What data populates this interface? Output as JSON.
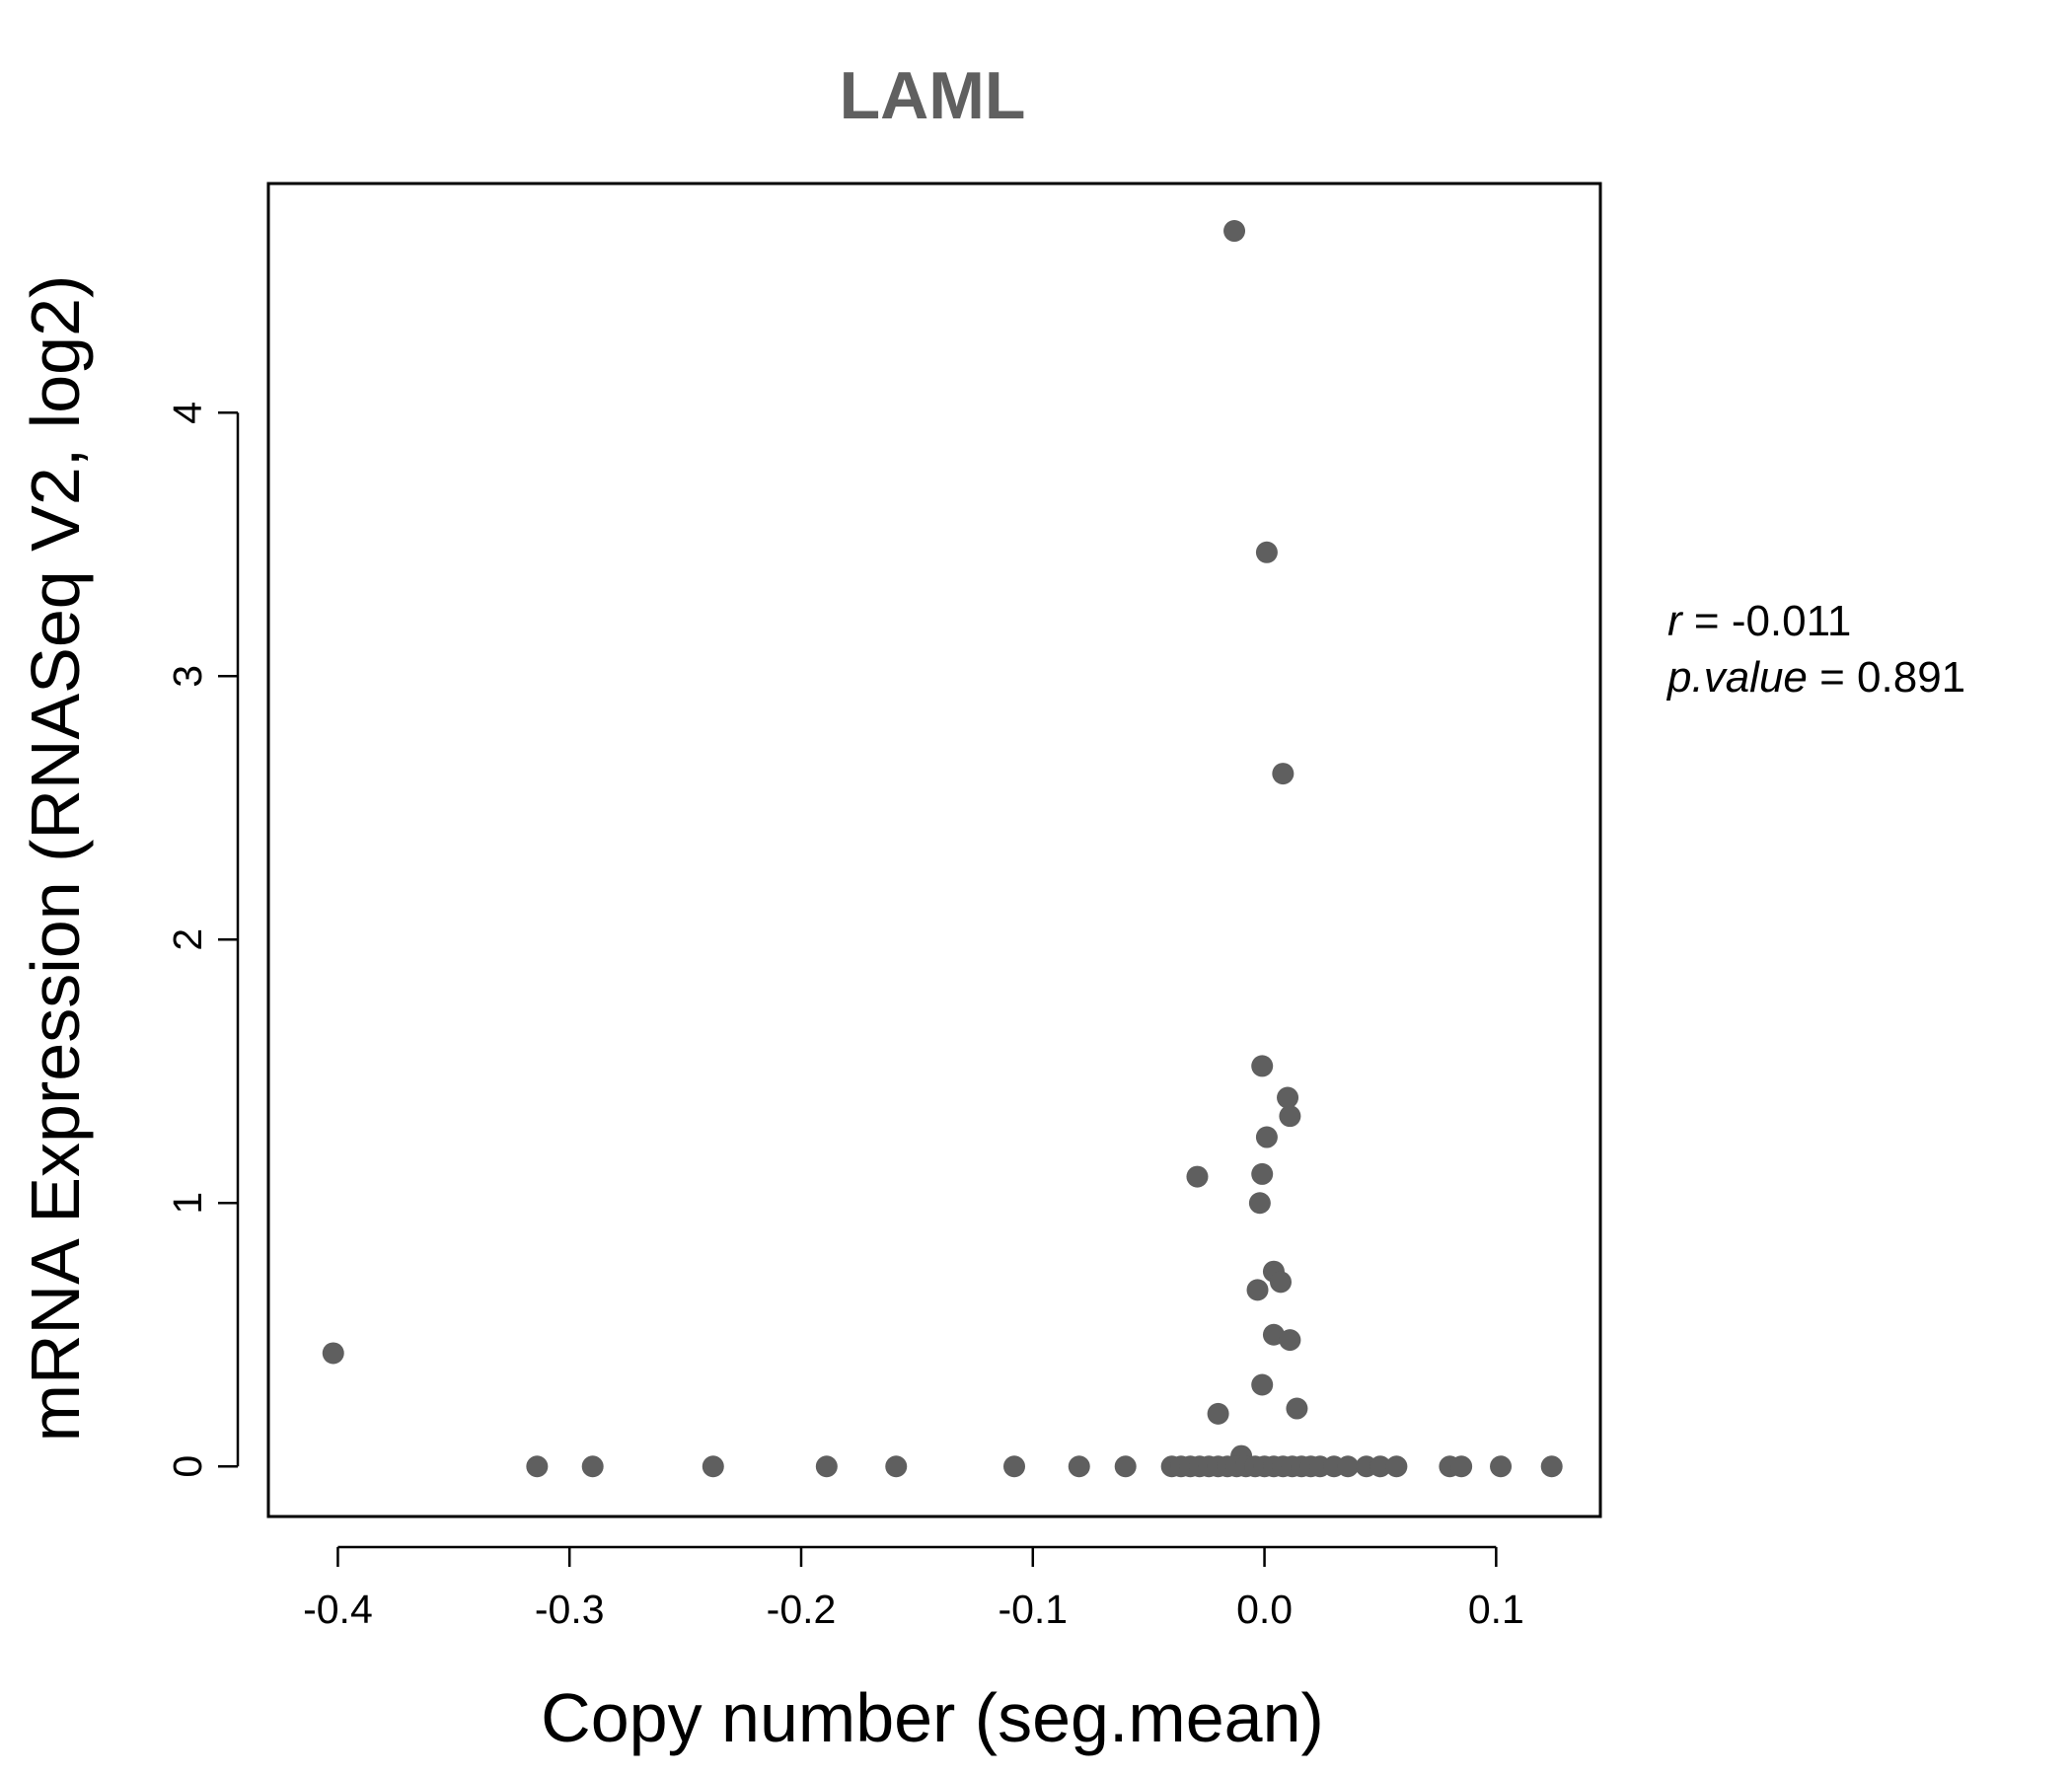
{
  "chart_data": {
    "type": "scatter",
    "title": "LAML",
    "xlabel": "Copy number (seg.mean)",
    "ylabel": "mRNA Expression (RNASeq V2, log2)",
    "xlim": [
      -0.43,
      0.145
    ],
    "ylim": [
      -0.19,
      4.87
    ],
    "xticks": [
      -0.4,
      -0.3,
      -0.2,
      -0.1,
      0.0,
      0.1
    ],
    "xtick_labels": [
      "-0.4",
      "-0.3",
      "-0.2",
      "-0.1",
      "0.0",
      "0.1"
    ],
    "yticks": [
      0,
      1,
      2,
      3,
      4
    ],
    "ytick_labels": [
      "0",
      "1",
      "2",
      "3",
      "4"
    ],
    "point_color": "#5f5f5f",
    "stats": {
      "r_label": "r",
      "r_value": "-0.011",
      "p_label": "p.value",
      "p_value": "0.891"
    },
    "points": [
      {
        "x": -0.013,
        "y": 4.69
      },
      {
        "x": 0.001,
        "y": 3.47
      },
      {
        "x": 0.008,
        "y": 2.63
      },
      {
        "x": -0.001,
        "y": 1.52
      },
      {
        "x": 0.01,
        "y": 1.4
      },
      {
        "x": 0.011,
        "y": 1.33
      },
      {
        "x": 0.001,
        "y": 1.25
      },
      {
        "x": -0.029,
        "y": 1.1
      },
      {
        "x": -0.001,
        "y": 1.11
      },
      {
        "x": -0.002,
        "y": 1.0
      },
      {
        "x": 0.004,
        "y": 0.74
      },
      {
        "x": 0.007,
        "y": 0.7
      },
      {
        "x": -0.003,
        "y": 0.67
      },
      {
        "x": 0.004,
        "y": 0.5
      },
      {
        "x": 0.011,
        "y": 0.48
      },
      {
        "x": -0.001,
        "y": 0.31
      },
      {
        "x": 0.014,
        "y": 0.22
      },
      {
        "x": -0.02,
        "y": 0.2
      },
      {
        "x": -0.01,
        "y": 0.04
      },
      {
        "x": -0.402,
        "y": 0.43
      },
      {
        "x": -0.314,
        "y": 0.0
      },
      {
        "x": -0.29,
        "y": 0.0
      },
      {
        "x": -0.238,
        "y": 0.0
      },
      {
        "x": -0.189,
        "y": 0.0
      },
      {
        "x": -0.159,
        "y": 0.0
      },
      {
        "x": -0.108,
        "y": 0.0
      },
      {
        "x": -0.08,
        "y": 0.0
      },
      {
        "x": -0.06,
        "y": 0.0
      },
      {
        "x": -0.04,
        "y": 0.0
      },
      {
        "x": -0.036,
        "y": 0.0
      },
      {
        "x": -0.032,
        "y": 0.0
      },
      {
        "x": -0.028,
        "y": 0.0
      },
      {
        "x": -0.024,
        "y": 0.0
      },
      {
        "x": -0.02,
        "y": 0.0
      },
      {
        "x": -0.016,
        "y": 0.0
      },
      {
        "x": -0.012,
        "y": 0.0
      },
      {
        "x": -0.008,
        "y": 0.0
      },
      {
        "x": -0.004,
        "y": 0.0
      },
      {
        "x": 0.0,
        "y": 0.0
      },
      {
        "x": 0.004,
        "y": 0.0
      },
      {
        "x": 0.008,
        "y": 0.0
      },
      {
        "x": 0.012,
        "y": 0.0
      },
      {
        "x": 0.016,
        "y": 0.0
      },
      {
        "x": 0.02,
        "y": 0.0
      },
      {
        "x": 0.024,
        "y": 0.0
      },
      {
        "x": 0.03,
        "y": 0.0
      },
      {
        "x": 0.036,
        "y": 0.0
      },
      {
        "x": 0.044,
        "y": 0.0
      },
      {
        "x": 0.05,
        "y": 0.0
      },
      {
        "x": 0.057,
        "y": 0.0
      },
      {
        "x": 0.08,
        "y": 0.0
      },
      {
        "x": 0.085,
        "y": 0.0
      },
      {
        "x": 0.102,
        "y": 0.0
      },
      {
        "x": 0.124,
        "y": 0.0
      }
    ]
  }
}
